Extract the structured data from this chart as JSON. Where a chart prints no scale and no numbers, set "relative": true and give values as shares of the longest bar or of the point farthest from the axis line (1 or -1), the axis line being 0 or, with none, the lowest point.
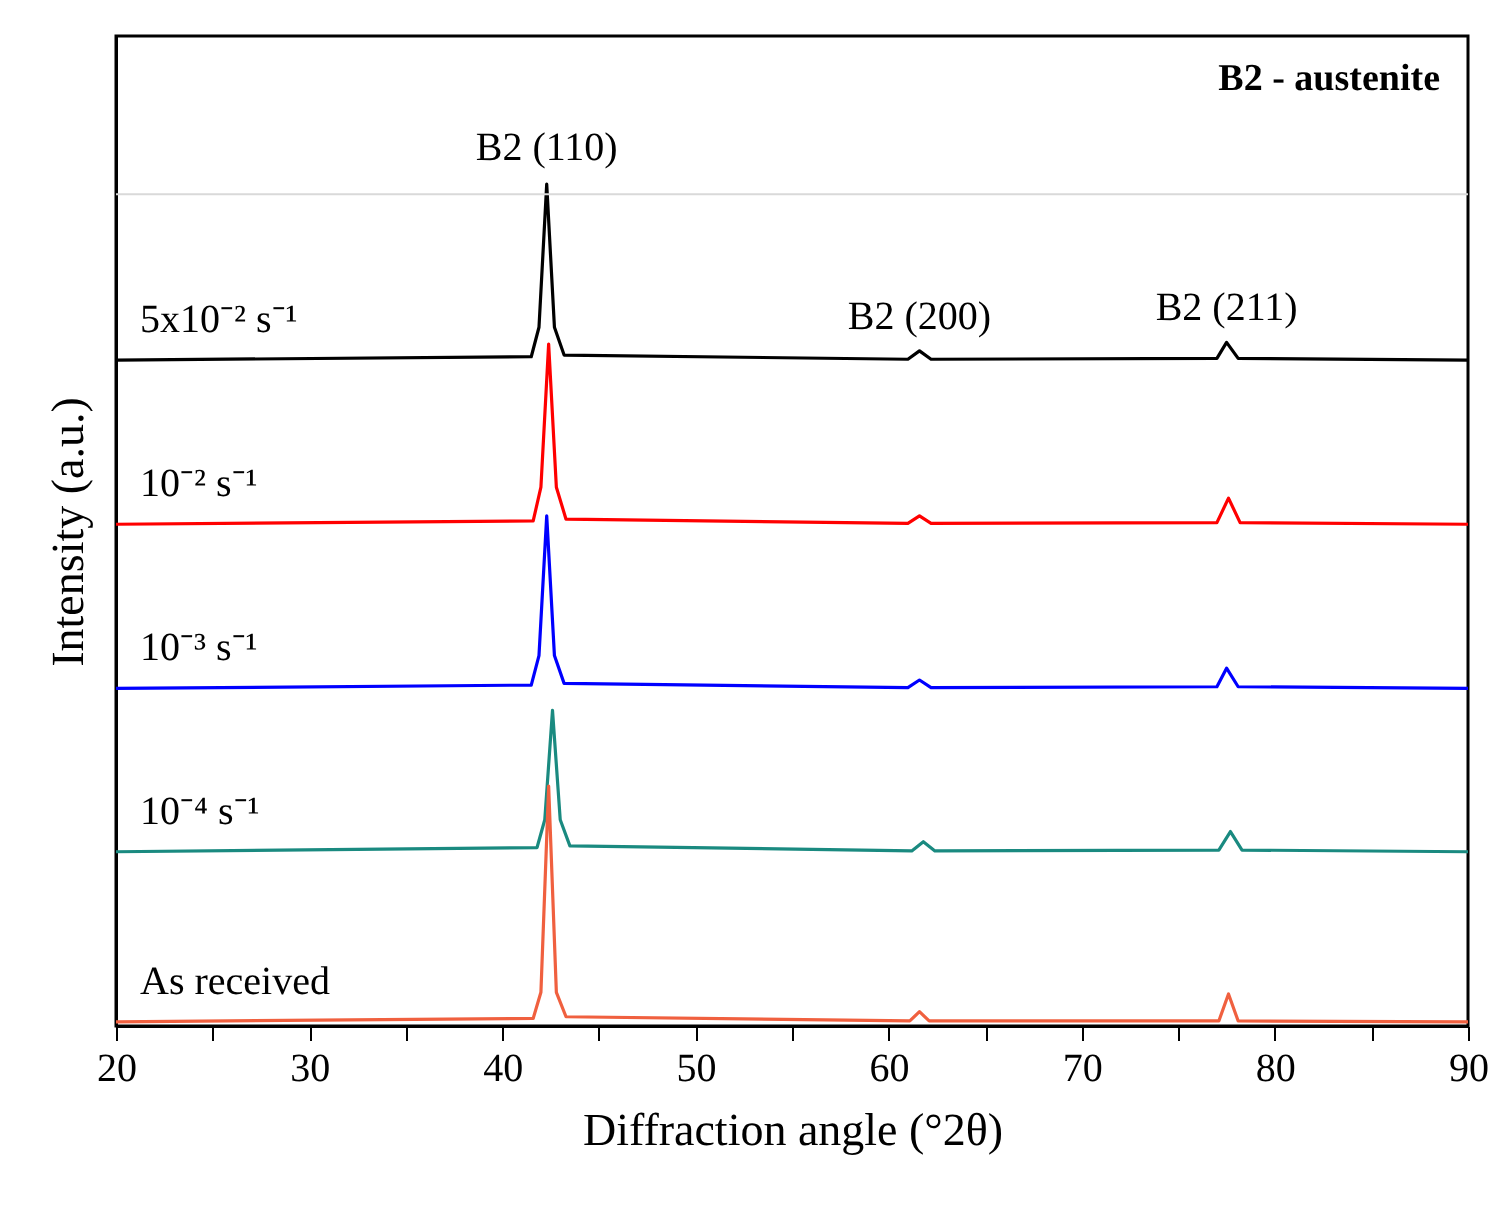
{
  "chart_data": {
    "type": "line",
    "xlabel": "Diffraction angle (°2θ)",
    "ylabel": "Intensity (a.u.)",
    "relative": true,
    "xlim": [
      20,
      90
    ],
    "xticks": [
      20,
      {
        "value": 25,
        "label": null
      },
      30,
      {
        "value": 35,
        "label": null
      },
      40,
      {
        "value": 45,
        "label": null
      },
      50,
      {
        "value": 55,
        "label": null
      },
      60,
      {
        "value": 65,
        "label": null
      },
      70,
      {
        "value": 75,
        "label": null
      },
      80,
      {
        "value": 85,
        "label": null
      },
      90
    ],
    "grid": false,
    "marker": "none",
    "line_style": "solid",
    "ref_lines": [
      {
        "axis": "y",
        "value": 0.988,
        "color": "#d9d9d9"
      }
    ],
    "annotations": [
      {
        "text": "B2 (110)",
        "x": 42.3,
        "y": 1.0
      },
      {
        "text": "B2 (200)",
        "x": 61.6,
        "y": 0.8
      },
      {
        "text": "B2 (211)",
        "x": 77.5,
        "y": 0.81
      },
      "B2 - austenite"
    ],
    "series": [
      {
        "name": "5x10⁻² s⁻¹",
        "color": "#000000",
        "x": [
          20,
          41.5,
          41.9,
          42.3,
          42.7,
          43.2,
          61.0,
          61.6,
          62.2,
          77.0,
          77.5,
          78.1,
          90
        ],
        "values": [
          0.791,
          0.795,
          0.83,
          1.0,
          0.83,
          0.797,
          0.792,
          0.802,
          0.792,
          0.793,
          0.812,
          0.793,
          0.791
        ]
      },
      {
        "name": "10⁻² s⁻¹",
        "color": "#ff0000",
        "x": [
          20,
          41.6,
          42.0,
          42.4,
          42.8,
          43.3,
          61.0,
          61.6,
          62.2,
          77.0,
          77.6,
          78.2,
          90
        ],
        "values": [
          0.596,
          0.6,
          0.64,
          0.81,
          0.64,
          0.602,
          0.597,
          0.606,
          0.597,
          0.598,
          0.627,
          0.598,
          0.596
        ]
      },
      {
        "name": "10⁻³ s⁻¹",
        "color": "#0000ff",
        "x": [
          20,
          41.5,
          41.9,
          42.3,
          42.7,
          43.2,
          61.0,
          61.6,
          62.2,
          77.0,
          77.5,
          78.1,
          90
        ],
        "values": [
          0.401,
          0.405,
          0.44,
          0.606,
          0.44,
          0.407,
          0.402,
          0.411,
          0.402,
          0.403,
          0.425,
          0.403,
          0.401
        ]
      },
      {
        "name": "10⁻⁴ s⁻¹",
        "color": "#1a8a80",
        "x": [
          20,
          41.8,
          42.2,
          42.6,
          43.0,
          43.5,
          61.2,
          61.8,
          62.4,
          77.1,
          77.7,
          78.3,
          90
        ],
        "values": [
          0.207,
          0.212,
          0.245,
          0.375,
          0.245,
          0.214,
          0.208,
          0.219,
          0.208,
          0.209,
          0.231,
          0.209,
          0.207
        ]
      },
      {
        "name": "As received",
        "color": "#f0603f",
        "x": [
          20,
          41.6,
          42.0,
          42.4,
          42.8,
          43.3,
          61.1,
          61.6,
          62.1,
          77.1,
          77.6,
          78.1,
          90
        ],
        "values": [
          0.005,
          0.009,
          0.04,
          0.285,
          0.04,
          0.011,
          0.006,
          0.017,
          0.006,
          0.006,
          0.038,
          0.006,
          0.005
        ]
      }
    ]
  }
}
